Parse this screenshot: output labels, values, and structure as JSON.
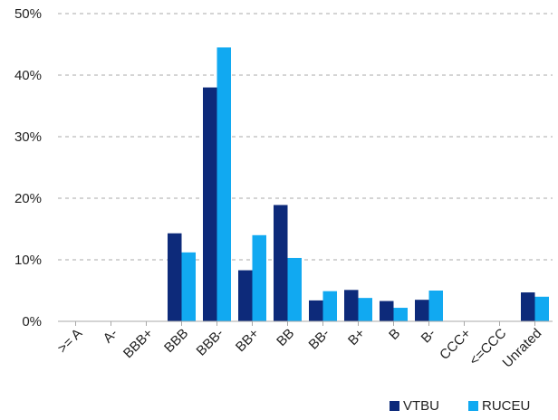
{
  "chart_data": {
    "type": "bar",
    "categories": [
      ">= A",
      "A-",
      "BBB+",
      "BBB",
      "BBB-",
      "BB+",
      "BB",
      "BB-",
      "B+",
      "B",
      "B-",
      "CCC+",
      "<=CCC",
      "Unrated"
    ],
    "series": [
      {
        "name": "VTBU",
        "color": "#0d2a7a",
        "values": [
          0,
          0,
          0,
          14.3,
          38.0,
          8.3,
          18.9,
          3.4,
          5.1,
          3.3,
          3.5,
          0,
          0,
          4.7
        ]
      },
      {
        "name": "RUCEU",
        "color": "#11a9f1",
        "values": [
          0,
          0,
          0,
          11.2,
          44.5,
          14.0,
          10.3,
          4.9,
          3.8,
          2.2,
          5.0,
          0,
          0,
          4.0
        ]
      }
    ],
    "ylim": [
      0,
      50
    ],
    "yticks": [
      "0%",
      "10%",
      "20%",
      "30%",
      "40%",
      "50%"
    ],
    "ytick_values": [
      0,
      10,
      20,
      30,
      40,
      50
    ],
    "grid": "horizontal-dashed",
    "legend_position": "bottom-right"
  }
}
